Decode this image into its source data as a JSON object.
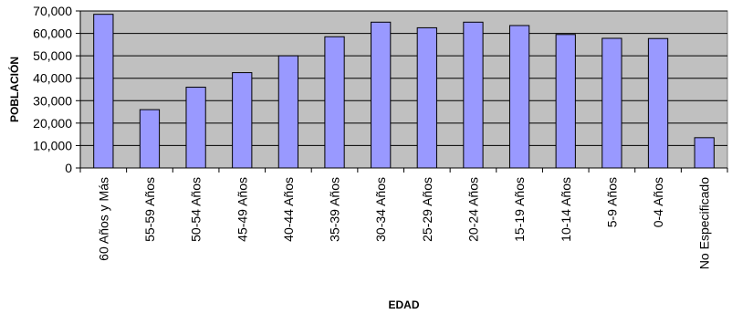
{
  "chart_data": {
    "type": "bar",
    "title": "",
    "xlabel": "EDAD",
    "ylabel": "POBLACIÓN",
    "categories": [
      "60 Años y Más",
      "55-59 Años",
      "50-54 Años",
      "45-49 Años",
      "40-44 Años",
      "35-39 Años",
      "30-34 Años",
      "25-29 Años",
      "20-24 Años",
      "15-19 Años",
      "10-14 Años",
      "5-9 Años",
      "0-4 Años",
      "No Especificado"
    ],
    "values": [
      68500,
      26000,
      36000,
      42500,
      50000,
      58500,
      65000,
      62500,
      65000,
      63500,
      59500,
      57800,
      57700,
      13500
    ],
    "ylim": [
      0,
      70000
    ],
    "yticks": [
      "0",
      "10,000",
      "20,000",
      "30,000",
      "40,000",
      "50,000",
      "60,000",
      "70,000"
    ],
    "ytick_values": [
      0,
      10000,
      20000,
      30000,
      40000,
      50000,
      60000,
      70000
    ],
    "grid": true,
    "legend": "none",
    "colors": {
      "bar_fill": "#9999FF",
      "bar_stroke": "#000000",
      "plot_bg": "#C0C0C0",
      "grid": "#000000"
    }
  }
}
